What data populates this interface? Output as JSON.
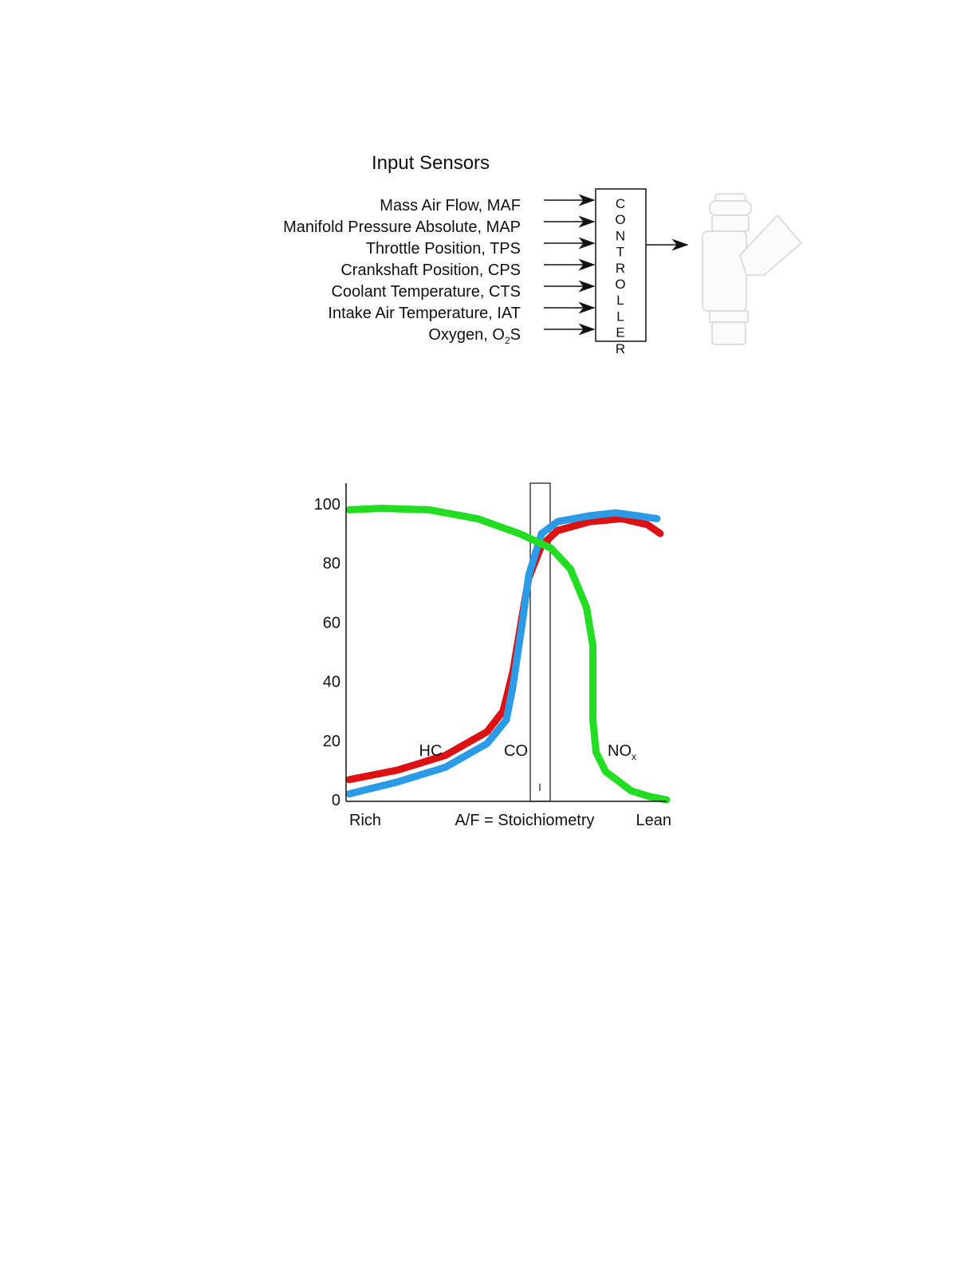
{
  "diagram": {
    "title": "Input Sensors",
    "sensors": [
      "Mass Air Flow, MAF",
      "Manifold Pressure Absolute, MAP",
      "Throttle Position, TPS",
      "Crankshaft Position, CPS",
      "Coolant Temperature, CTS",
      "Intake Air  Temperature, IAT",
      {
        "text": "Oxygen, O",
        "sub": "2",
        "tail": "S"
      }
    ],
    "controller": "CONTROLLER"
  },
  "chart_data": {
    "type": "line",
    "x_labels": [
      "Rich",
      "A/F = Stoichiometry",
      "Lean"
    ],
    "xlim": [
      0,
      100
    ],
    "ylim": [
      0,
      107
    ],
    "yticks": [
      0,
      20,
      40,
      60,
      80,
      100
    ],
    "series": [
      {
        "name": "HC",
        "color": "#dd1111",
        "x": [
          1,
          16,
          31,
          44,
          49,
          52,
          55,
          57,
          61,
          66,
          76,
          86,
          94,
          98
        ],
        "values": [
          6.8,
          10,
          15,
          23,
          30,
          43,
          62.5,
          75,
          86,
          91,
          94,
          95,
          93,
          90
        ]
      },
      {
        "name": "CO",
        "color": "#2b9be8",
        "x": [
          1,
          16,
          31,
          44,
          50,
          52,
          55,
          57,
          61,
          66,
          76,
          84,
          91,
          97
        ],
        "values": [
          2,
          6,
          11,
          19,
          27,
          38,
          60,
          76,
          90,
          94,
          96,
          97,
          96,
          95
        ]
      },
      {
        "name": {
          "text": "NO",
          "sub": "x"
        },
        "color": "#22dd22",
        "x": [
          1,
          11,
          26,
          41,
          54,
          64,
          70,
          75,
          77,
          77,
          78,
          81,
          89,
          95,
          100
        ],
        "values": [
          98,
          98.5,
          98,
          95,
          90,
          85,
          78,
          65,
          52,
          27,
          16,
          9.5,
          3,
          1,
          0
        ]
      }
    ]
  }
}
